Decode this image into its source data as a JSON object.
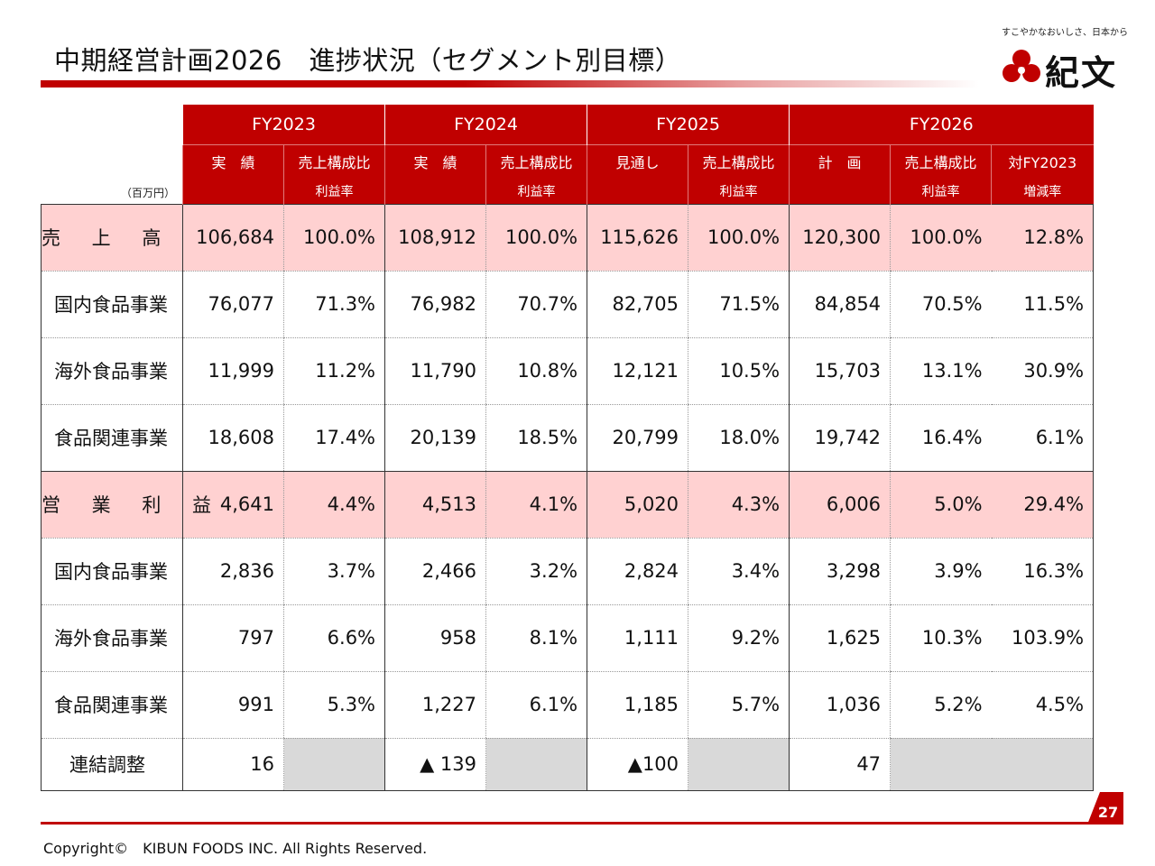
{
  "header": {
    "title": "中期経営計画2026　進捗状況（セグメント別目標）",
    "tagline": "すこやかなおいしさ、日本から",
    "logo_text": "紀文",
    "brand_color": "#c00000"
  },
  "table": {
    "unit": "（百万円）",
    "years": [
      "FY2023",
      "FY2024",
      "FY2025",
      "FY2026"
    ],
    "subheaders": {
      "fy2023": [
        "実　績",
        "売上構成比"
      ],
      "fy2024": [
        "実　績",
        "売上構成比"
      ],
      "fy2025": [
        "見通し",
        "売上構成比"
      ],
      "fy2026": [
        "計　画",
        "売上構成比",
        "対FY2023"
      ]
    },
    "subheaders2": {
      "fy2023": "利益率",
      "fy2024": "利益率",
      "fy2025": "利益率",
      "fy2026": [
        "利益率",
        "増減率"
      ]
    },
    "rows": [
      {
        "label": "売 上 高",
        "values": [
          "106,684",
          "100.0%",
          "108,912",
          "100.0%",
          "115,626",
          "100.0%",
          "120,300",
          "100.0%",
          "12.8%"
        ]
      },
      {
        "label": "国内食品事業",
        "values": [
          "76,077",
          "71.3%",
          "76,982",
          "70.7%",
          "82,705",
          "71.5%",
          "84,854",
          "70.5%",
          "11.5%"
        ]
      },
      {
        "label": "海外食品事業",
        "values": [
          "11,999",
          "11.2%",
          "11,790",
          "10.8%",
          "12,121",
          "10.5%",
          "15,703",
          "13.1%",
          "30.9%"
        ]
      },
      {
        "label": "食品関連事業",
        "values": [
          "18,608",
          "17.4%",
          "20,139",
          "18.5%",
          "20,799",
          "18.0%",
          "19,742",
          "16.4%",
          "6.1%"
        ]
      },
      {
        "label": "営 業 利 益",
        "values": [
          "4,641",
          "4.4%",
          "4,513",
          "4.1%",
          "5,020",
          "4.3%",
          "6,006",
          "5.0%",
          "29.4%"
        ]
      },
      {
        "label": "国内食品事業",
        "values": [
          "2,836",
          "3.7%",
          "2,466",
          "3.2%",
          "2,824",
          "3.4%",
          "3,298",
          "3.9%",
          "16.3%"
        ]
      },
      {
        "label": "海外食品事業",
        "values": [
          "797",
          "6.6%",
          "958",
          "8.1%",
          "1,111",
          "9.2%",
          "1,625",
          "10.3%",
          "103.9%"
        ]
      },
      {
        "label": "食品関連事業",
        "values": [
          "991",
          "5.3%",
          "1,227",
          "6.1%",
          "1,185",
          "5.7%",
          "1,036",
          "5.2%",
          "4.5%"
        ]
      },
      {
        "label": "連結調整",
        "values": [
          "16",
          "",
          "▲ 139",
          "",
          "▲100",
          "",
          "47",
          "",
          ""
        ]
      }
    ]
  },
  "footer": {
    "page_number": "27",
    "copyright": "Copyright©　KIBUN FOODS INC. All Rights Reserved."
  }
}
